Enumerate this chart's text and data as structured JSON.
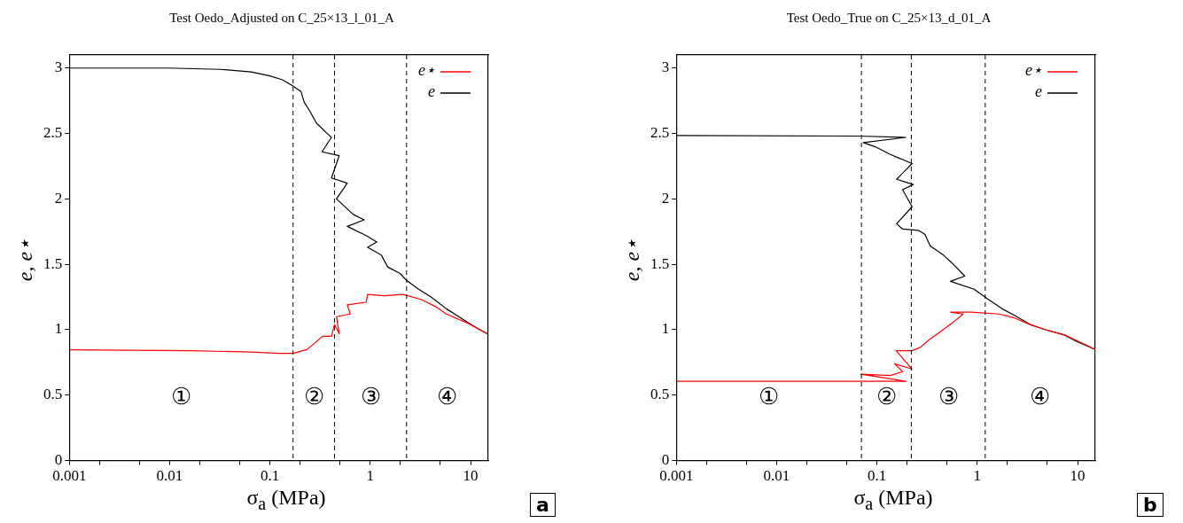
{
  "chart_data": [
    {
      "type": "line",
      "title": "Test Oedo_Adjusted on C_25×13_l_01_A",
      "xlabel": "σ$_{a}$ (MPa)",
      "ylabel": "e, e⋆",
      "log": "x",
      "grid": false,
      "legend": "top right",
      "marker": "none",
      "line_style": "solid",
      "xlim": [
        0.001,
        15
      ],
      "ylim": [
        0,
        3.1
      ],
      "xticks": [
        0.001,
        {
          "value": 0.002,
          "label": null
        },
        {
          "value": 0.005,
          "label": null
        },
        0.01,
        {
          "value": 0.02,
          "label": null
        },
        {
          "value": 0.05,
          "label": null
        },
        0.1,
        {
          "value": 0.2,
          "label": null
        },
        {
          "value": 0.5,
          "label": null
        },
        1,
        {
          "value": 2,
          "label": null
        },
        {
          "value": 5,
          "label": null
        },
        10
      ],
      "yticks": [
        0,
        0.5,
        1,
        1.5,
        2,
        2.5,
        3
      ],
      "series": [
        {
          "name": "e⋆",
          "color": "#ff0000",
          "x": [
            0.001,
            0.0158,
            0.065,
            0.124,
            0.17,
            0.235,
            0.335,
            0.41,
            0.44,
            0.49,
            0.46,
            0.63,
            0.59,
            0.91,
            0.94,
            1.39,
            2.12,
            3.25,
            4.64,
            5.74,
            9.4,
            14.7
          ],
          "values": [
            0.847,
            0.84,
            0.83,
            0.82,
            0.82,
            0.85,
            0.95,
            0.95,
            1.04,
            0.97,
            1.1,
            1.12,
            1.19,
            1.21,
            1.27,
            1.26,
            1.27,
            1.23,
            1.17,
            1.12,
            1.05,
            0.97
          ]
        },
        {
          "name": "e",
          "color": "#000000",
          "x": [
            0.001,
            0.0096,
            0.032,
            0.065,
            0.1,
            0.133,
            0.164,
            0.204,
            0.219,
            0.25,
            0.29,
            0.36,
            0.41,
            0.33,
            0.49,
            0.41,
            0.59,
            0.46,
            0.68,
            0.87,
            0.59,
            0.91,
            1.16,
            0.94,
            1.29,
            1.49,
            1.98,
            2.28,
            3.03,
            4.03,
            5.74,
            8.8,
            11.7,
            14.7
          ],
          "values": [
            3.0,
            3.0,
            2.99,
            2.97,
            2.94,
            2.91,
            2.87,
            2.82,
            2.74,
            2.67,
            2.58,
            2.51,
            2.47,
            2.36,
            2.33,
            2.16,
            2.12,
            2.0,
            1.88,
            1.84,
            1.79,
            1.72,
            1.67,
            1.63,
            1.57,
            1.48,
            1.43,
            1.38,
            1.31,
            1.25,
            1.16,
            1.07,
            1.01,
            0.97
          ]
        }
      ],
      "ref_lines": [
        {
          "axis": "x",
          "value": 0.17,
          "color": "#000000",
          "line_style": "dashed"
        },
        {
          "axis": "x",
          "value": 0.44,
          "color": "#000000",
          "line_style": "dashed"
        },
        {
          "axis": "x",
          "value": 2.3,
          "color": "#000000",
          "line_style": "dashed"
        }
      ],
      "annotations": [
        "①",
        "②",
        "③",
        "④",
        "a"
      ]
    },
    {
      "type": "line",
      "title": "Test Oedo_True on C_25×13_d_01_A",
      "xlabel": "σ$_{a}$ (MPa)",
      "ylabel": "e, e⋆",
      "log": "x",
      "grid": false,
      "legend": "top right",
      "marker": "none",
      "line_style": "solid",
      "xlim": [
        0.001,
        15
      ],
      "ylim": [
        0,
        3.1
      ],
      "xticks": [
        0.001,
        {
          "value": 0.002,
          "label": null
        },
        {
          "value": 0.005,
          "label": null
        },
        0.01,
        {
          "value": 0.02,
          "label": null
        },
        {
          "value": 0.05,
          "label": null
        },
        0.1,
        {
          "value": 0.2,
          "label": null
        },
        {
          "value": 0.5,
          "label": null
        },
        1,
        {
          "value": 2,
          "label": null
        },
        {
          "value": 5,
          "label": null
        },
        10
      ],
      "yticks": [
        0,
        0.5,
        1,
        1.5,
        2,
        2.5,
        3
      ],
      "series": [
        {
          "name": "e⋆",
          "color": "#ff0000",
          "x": [
            0.001,
            0.067,
            0.194,
            0.069,
            0.136,
            0.18,
            0.15,
            0.224,
            0.155,
            0.224,
            0.27,
            0.34,
            0.42,
            0.56,
            0.72,
            0.54,
            0.87,
            1.65,
            2.35,
            3.36,
            4.8,
            7.4,
            15
          ],
          "values": [
            0.606,
            0.606,
            0.606,
            0.66,
            0.65,
            0.68,
            0.74,
            0.7,
            0.84,
            0.84,
            0.865,
            0.93,
            0.98,
            1.05,
            1.12,
            1.135,
            1.135,
            1.12,
            1.09,
            1.04,
            1.0,
            0.96,
            0.85
          ]
        },
        {
          "name": "e",
          "color": "#000000",
          "x": [
            0.001,
            0.067,
            0.194,
            0.073,
            0.095,
            0.136,
            0.168,
            0.224,
            0.157,
            0.23,
            0.18,
            0.224,
            0.157,
            0.18,
            0.258,
            0.3,
            0.34,
            0.46,
            0.56,
            0.75,
            0.54,
            0.93,
            1.24,
            1.77,
            2.35,
            3.36,
            4.8,
            7.4,
            9.8,
            15
          ],
          "values": [
            2.485,
            2.48,
            2.47,
            2.43,
            2.4,
            2.34,
            2.31,
            2.27,
            2.15,
            2.11,
            2.07,
            1.94,
            1.81,
            1.77,
            1.76,
            1.73,
            1.64,
            1.57,
            1.51,
            1.41,
            1.37,
            1.31,
            1.24,
            1.16,
            1.11,
            1.04,
            1.0,
            0.96,
            0.91,
            0.85
          ]
        }
      ],
      "ref_lines": [
        {
          "axis": "x",
          "value": 0.07,
          "color": "#000000",
          "line_style": "dashed"
        },
        {
          "axis": "x",
          "value": 0.22,
          "color": "#000000",
          "line_style": "dashed"
        },
        {
          "axis": "x",
          "value": 1.2,
          "color": "#000000",
          "line_style": "dashed"
        }
      ],
      "annotations": [
        "①",
        "②",
        "③",
        "④",
        "b"
      ]
    }
  ]
}
